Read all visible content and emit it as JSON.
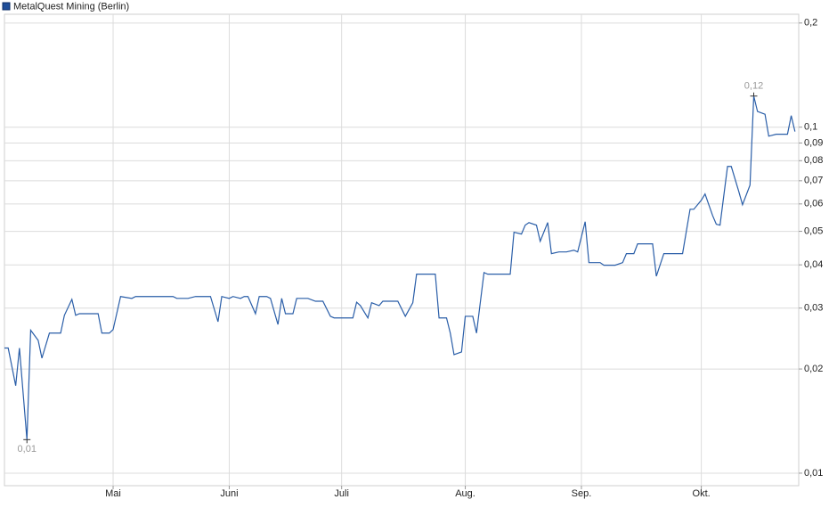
{
  "chart_data": {
    "type": "line",
    "legend": "MetalQuest Mining (Berlin)",
    "log_y": true,
    "grid": true,
    "x": [
      0,
      1,
      3,
      4,
      6,
      7,
      9,
      10,
      12,
      13,
      15,
      16,
      18,
      19,
      20,
      22,
      23,
      25,
      26,
      28,
      29,
      31,
      34,
      35,
      45,
      46,
      49,
      51,
      55,
      57,
      58,
      60,
      61,
      63,
      64,
      65,
      67,
      68,
      70,
      71,
      73,
      74,
      75,
      77,
      78,
      81,
      83,
      85,
      87,
      88,
      93,
      94,
      95,
      97,
      98,
      100,
      101,
      105,
      107,
      109,
      110,
      115,
      116,
      118,
      119,
      120,
      122,
      123,
      125,
      126,
      128,
      129,
      135,
      136,
      138,
      139,
      140,
      142,
      143,
      145,
      146,
      148,
      149,
      150,
      152,
      153,
      155,
      156,
      158,
      159,
      160,
      162,
      163,
      165,
      166,
      168,
      169,
      173,
      174,
      176,
      181,
      183,
      184,
      186,
      187,
      189,
      190,
      191,
      193,
      194,
      196,
      197,
      199,
      200,
      201,
      203,
      204,
      206,
      209,
      210,
      211
    ],
    "series": [
      {
        "name": "MetalQuest Mining (Berlin)",
        "color": "#2a5ea8",
        "values": [
          0.023,
          0.023,
          0.0179,
          0.023,
          0.0125,
          0.0259,
          0.0242,
          0.0215,
          0.0254,
          0.0254,
          0.0254,
          0.0286,
          0.0318,
          0.0286,
          0.0289,
          0.0289,
          0.0289,
          0.0289,
          0.0254,
          0.0254,
          0.026,
          0.0324,
          0.032,
          0.0324,
          0.0324,
          0.032,
          0.032,
          0.0324,
          0.0324,
          0.0274,
          0.0324,
          0.032,
          0.0324,
          0.032,
          0.0324,
          0.0324,
          0.0289,
          0.0324,
          0.0324,
          0.032,
          0.0269,
          0.032,
          0.0289,
          0.0289,
          0.032,
          0.032,
          0.0314,
          0.0314,
          0.0284,
          0.0281,
          0.0281,
          0.0312,
          0.0305,
          0.0281,
          0.0311,
          0.0305,
          0.0314,
          0.0314,
          0.0284,
          0.0311,
          0.0376,
          0.0376,
          0.0281,
          0.0281,
          0.0254,
          0.022,
          0.0224,
          0.0284,
          0.0284,
          0.0254,
          0.038,
          0.0376,
          0.0376,
          0.0497,
          0.0491,
          0.0521,
          0.053,
          0.0521,
          0.0468,
          0.053,
          0.0431,
          0.0436,
          0.0436,
          0.0436,
          0.0441,
          0.0436,
          0.0533,
          0.0406,
          0.0406,
          0.0406,
          0.0399,
          0.0399,
          0.0399,
          0.0406,
          0.0431,
          0.0431,
          0.046,
          0.046,
          0.0371,
          0.0431,
          0.0431,
          0.0579,
          0.0579,
          0.0615,
          0.0641,
          0.0556,
          0.0524,
          0.0521,
          0.077,
          0.077,
          0.0652,
          0.0597,
          0.068,
          0.123,
          0.111,
          0.109,
          0.0942,
          0.0954,
          0.0954,
          0.108,
          0.0971
        ]
      }
    ],
    "high_label": "0,12",
    "low_label": "0,01",
    "xlim": [
      0,
      212
    ],
    "xticks": [
      {
        "value": 29,
        "label": "Mai"
      },
      {
        "value": 60,
        "label": "Juni"
      },
      {
        "value": 90,
        "label": "Juli"
      },
      {
        "value": 123,
        "label": "Aug."
      },
      {
        "value": 154,
        "label": "Sep."
      },
      {
        "value": 186,
        "label": "Okt."
      }
    ],
    "ylim": [
      0.0092,
      0.212
    ],
    "yticks": [
      {
        "value": 0.01,
        "label": "0,01"
      },
      {
        "value": 0.02,
        "label": "0,02"
      },
      {
        "value": 0.03,
        "label": "0,03"
      },
      {
        "value": 0.04,
        "label": "0,04"
      },
      {
        "value": 0.05,
        "label": "0,05"
      },
      {
        "value": 0.06,
        "label": "0,06"
      },
      {
        "value": 0.07,
        "label": "0,07"
      },
      {
        "value": 0.08,
        "label": "0,08"
      },
      {
        "value": 0.09,
        "label": "0,09"
      },
      {
        "value": 0.1,
        "label": "0,1"
      },
      {
        "value": 0.2,
        "label": "0,2"
      }
    ]
  }
}
